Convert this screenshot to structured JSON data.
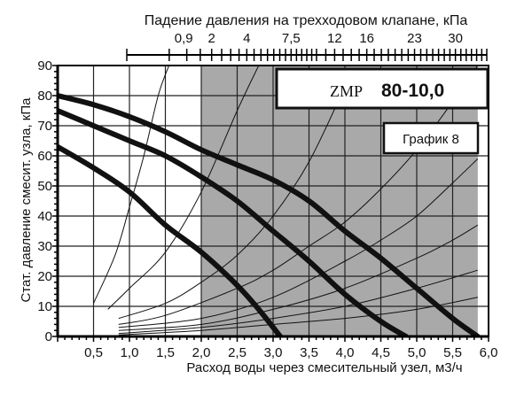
{
  "colors": {
    "background": "#ffffff",
    "shaded_region": "#a9a9a9",
    "grid": "#222222",
    "curve": "#111111",
    "guide": "#111111"
  },
  "chart_data": {
    "type": "line",
    "title": "",
    "xlabel": "Расход воды через смесительный узел, м3/ч",
    "ylabel": "Стат. давление смесит. узла, кПа",
    "top_axis_label": "Падение давления на трехходовом клапане, кПа",
    "model_label": "ZMP",
    "model_value": "80-10,0",
    "chart_label": "График 8",
    "xlim": [
      0,
      6.0
    ],
    "ylim": [
      0,
      90
    ],
    "x_ticks": [
      "0,5",
      "1,0",
      "1,5",
      "2,0",
      "2,5",
      "3,0",
      "3,5",
      "4,0",
      "4,5",
      "5,0",
      "5,5",
      "6,0"
    ],
    "y_ticks": [
      "0",
      "10",
      "20",
      "30",
      "40",
      "50",
      "60",
      "70",
      "80",
      "90"
    ],
    "top_ticks": [
      "0,9",
      "2",
      "4",
      "7,5",
      "12",
      "16",
      "23",
      "30"
    ],
    "grid": true,
    "shaded_x_range": [
      2.0,
      5.85
    ],
    "series": [
      {
        "x": [
          0,
          0.5,
          1.0,
          1.5,
          2.0,
          2.5,
          2.8,
          3.1
        ],
        "y": [
          63,
          56,
          48,
          37,
          28,
          17,
          9,
          0
        ]
      },
      {
        "x": [
          0,
          0.5,
          1.0,
          1.5,
          2.0,
          2.5,
          3.0,
          3.5,
          4.0,
          4.5,
          4.85
        ],
        "y": [
          75,
          70,
          65,
          60,
          53,
          45,
          35,
          25,
          14,
          5,
          0
        ]
      },
      {
        "x": [
          0,
          0.5,
          1.0,
          1.5,
          2.0,
          2.5,
          3.0,
          3.5,
          4.0,
          4.5,
          5.0,
          5.5,
          5.85
        ],
        "y": [
          80,
          77,
          73,
          68,
          62,
          57,
          52,
          45,
          35,
          26,
          16,
          6,
          0
        ]
      }
    ],
    "guide_curves": [
      {
        "x": [
          0.5,
          0.8,
          1.0,
          1.2,
          1.4,
          1.55
        ],
        "y": [
          11,
          27,
          43,
          60,
          80,
          90
        ]
      },
      {
        "x": [
          0.7,
          1.0,
          1.5,
          2.0,
          2.5,
          2.8
        ],
        "y": [
          9,
          16,
          28,
          48,
          75,
          90
        ]
      },
      {
        "x": [
          0.85,
          1.5,
          2.0,
          2.5,
          3.0,
          3.5,
          4.0
        ],
        "y": [
          6,
          11,
          18,
          27,
          40,
          58,
          83
        ]
      },
      {
        "x": [
          0.85,
          1.5,
          2.5,
          3.0,
          3.5,
          4.0,
          4.5,
          5.0,
          5.5,
          5.85
        ],
        "y": [
          4,
          7,
          16,
          22,
          30,
          38,
          49,
          62,
          78,
          90
        ]
      },
      {
        "x": [
          0.85,
          2.0,
          3.0,
          4.0,
          4.5,
          5.0,
          5.5,
          5.85
        ],
        "y": [
          3,
          6,
          13,
          25,
          32,
          40,
          51,
          59
        ]
      },
      {
        "x": [
          0.85,
          2.0,
          3.0,
          4.0,
          5.0,
          5.5,
          5.85
        ],
        "y": [
          2,
          4,
          9,
          16,
          26,
          32,
          37
        ]
      },
      {
        "x": [
          0.85,
          2.0,
          3.0,
          4.0,
          5.0,
          5.85
        ],
        "y": [
          1,
          3,
          6,
          10,
          16,
          22
        ]
      },
      {
        "x": [
          0.85,
          2.0,
          3.0,
          4.0,
          5.0,
          5.85
        ],
        "y": [
          0.5,
          2,
          4,
          6,
          9,
          13
        ]
      }
    ]
  }
}
